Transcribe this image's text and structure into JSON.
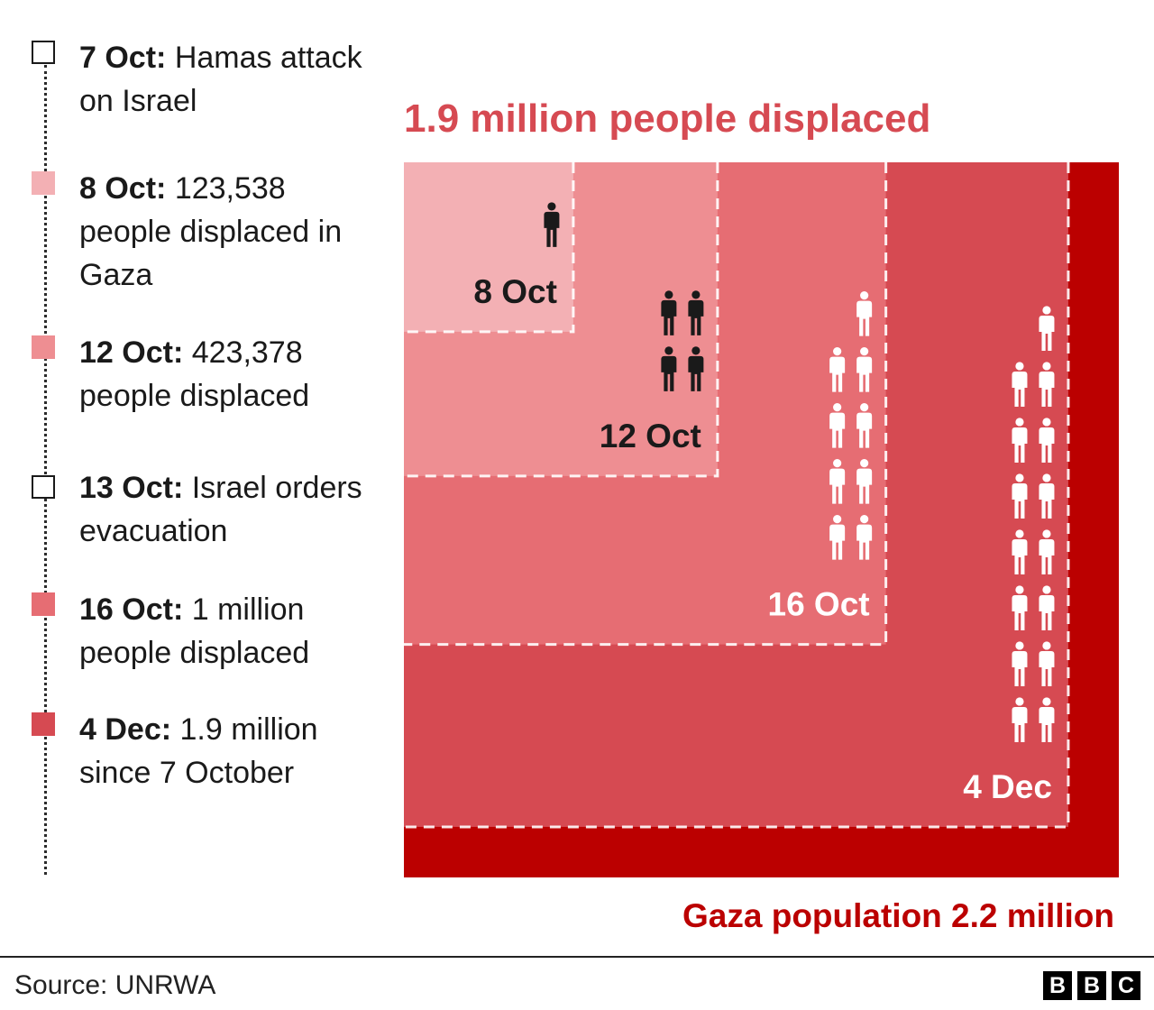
{
  "colors": {
    "c8oct": "#f3b0b4",
    "c12oct": "#ee8e92",
    "c16oct": "#e66d73",
    "c4dec": "#d64a52",
    "population": "#bb0000",
    "headline": "#d64a52",
    "label_dark": "#1a1a1a",
    "label_light": "#ffffff"
  },
  "timeline": {
    "items": [
      {
        "date": "7 Oct:",
        "text": "Hamas attack on Israel",
        "color": "#ffffff",
        "outline": true
      },
      {
        "date": "8 Oct:",
        "text": "123,538 people displaced in Gaza",
        "color": "#f3b0b4",
        "outline": false
      },
      {
        "date": "12 Oct:",
        "text": "423,378 people displaced",
        "color": "#ee8e92",
        "outline": false
      },
      {
        "date": "13 Oct:",
        "text": "Israel orders evacuation",
        "color": "#ffffff",
        "outline": true
      },
      {
        "date": "16 Oct:",
        "text": "1 million people displaced",
        "color": "#e66d73",
        "outline": false
      },
      {
        "date": "4 Dec:",
        "text": "1.9 million since 7 October",
        "color": "#d64a52",
        "outline": false
      }
    ]
  },
  "headline": "1.9 million people displaced",
  "chart_data": {
    "type": "area",
    "title": "1.9 million people displaced",
    "unit": "people displaced",
    "total_label": "Gaza population 2.2 million",
    "total": 2200000,
    "series": [
      {
        "name": "8 Oct",
        "value": 123538,
        "icons": 1,
        "color": "#f3b0b4",
        "icon_color": "#1a1a1a"
      },
      {
        "name": "12 Oct",
        "value": 423378,
        "icons": 4,
        "color": "#ee8e92",
        "icon_color": "#1a1a1a"
      },
      {
        "name": "16 Oct",
        "value": 1000000,
        "icons": 9,
        "color": "#e66d73",
        "icon_color": "#ffffff"
      },
      {
        "name": "4 Dec",
        "value": 1900000,
        "icons": 15,
        "color": "#d64a52",
        "icon_color": "#ffffff"
      }
    ]
  },
  "footer": {
    "source": "Source: UNRWA",
    "logo_letters": [
      "B",
      "B",
      "C"
    ]
  }
}
